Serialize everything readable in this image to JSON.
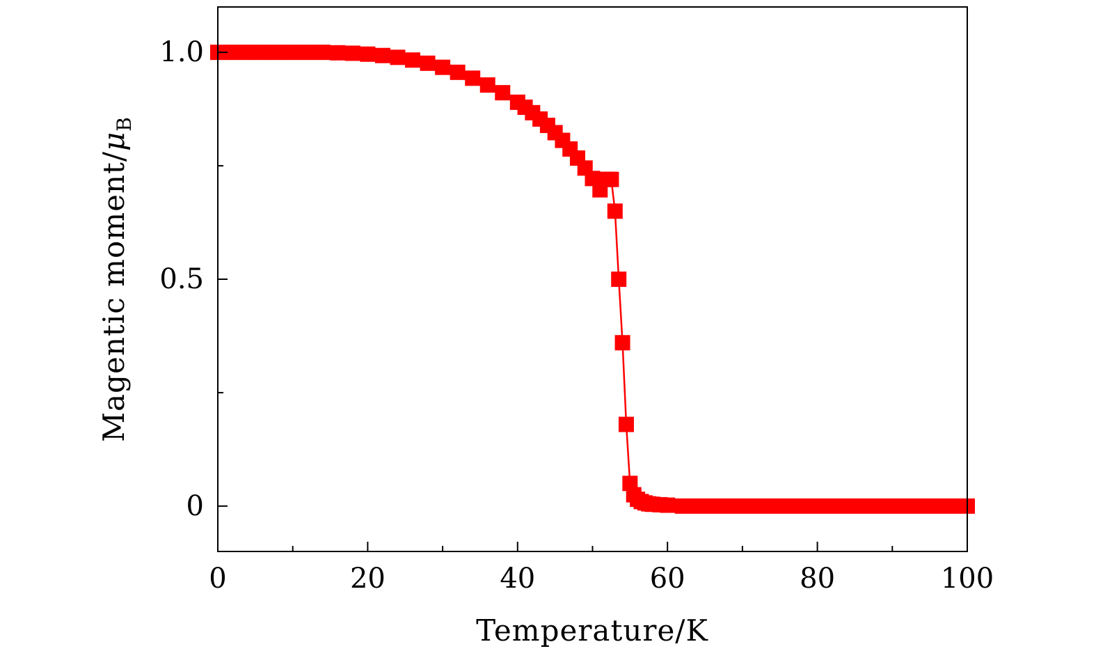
{
  "chart_data": {
    "type": "line",
    "xlabel": "Temperature/K",
    "ylabel": "Magentic moment/",
    "ylabel_symbol": "μ",
    "ylabel_subscript": "B",
    "xlim": [
      0,
      100
    ],
    "ylim": [
      -0.1,
      1.1
    ],
    "x_ticks_major": [
      0,
      20,
      40,
      60,
      80,
      100
    ],
    "x_tick_labels": [
      "0",
      "20",
      "40",
      "60",
      "80",
      "100"
    ],
    "x_ticks_minor": [
      10,
      30,
      50,
      70,
      90
    ],
    "y_ticks_major": [
      0,
      0.5,
      1.0
    ],
    "y_tick_labels": [
      "0",
      "0.5",
      "1.0"
    ],
    "y_ticks_minor": [
      0.25,
      0.75
    ],
    "grid": false,
    "legend": "none",
    "marker": "square",
    "color": "#ff0000",
    "series": [
      {
        "x": [
          0,
          2,
          4,
          6,
          8,
          10,
          12,
          14,
          16,
          18,
          20,
          22,
          24,
          26,
          28,
          30,
          32,
          34,
          36,
          38,
          40,
          41,
          42,
          43,
          44,
          45,
          46,
          47,
          48,
          49,
          50,
          51,
          51.5,
          52,
          52.5,
          53,
          53.5,
          54,
          54.5,
          55,
          55.5,
          56,
          56.5,
          57,
          57.5,
          58,
          59,
          60,
          62,
          64,
          66,
          68,
          70,
          72,
          74,
          76,
          78,
          80,
          82,
          84,
          86,
          88,
          90,
          92,
          94,
          96,
          98,
          100
        ],
        "y": [
          1.0,
          1.0,
          1.0,
          1.0,
          1.0,
          1.0,
          1.0,
          1.0,
          0.999,
          0.998,
          0.996,
          0.993,
          0.989,
          0.983,
          0.976,
          0.967,
          0.956,
          0.943,
          0.928,
          0.911,
          0.89,
          0.879,
          0.867,
          0.853,
          0.839,
          0.823,
          0.806,
          0.787,
          0.767,
          0.745,
          0.722,
          0.697,
          0.72,
          0.72,
          0.72,
          0.65,
          0.5,
          0.36,
          0.18,
          0.05,
          0.025,
          0.015,
          0.01,
          0.007,
          0.005,
          0.004,
          0.003,
          0.002,
          0.0,
          0.0,
          0.0,
          0.0,
          0.0,
          0.0,
          0.0,
          0.0,
          0.0,
          0.0,
          0.0,
          0.0,
          0.0,
          0.0,
          0.0,
          0.0,
          0.0,
          0.0,
          0.0,
          0.0
        ]
      }
    ]
  }
}
